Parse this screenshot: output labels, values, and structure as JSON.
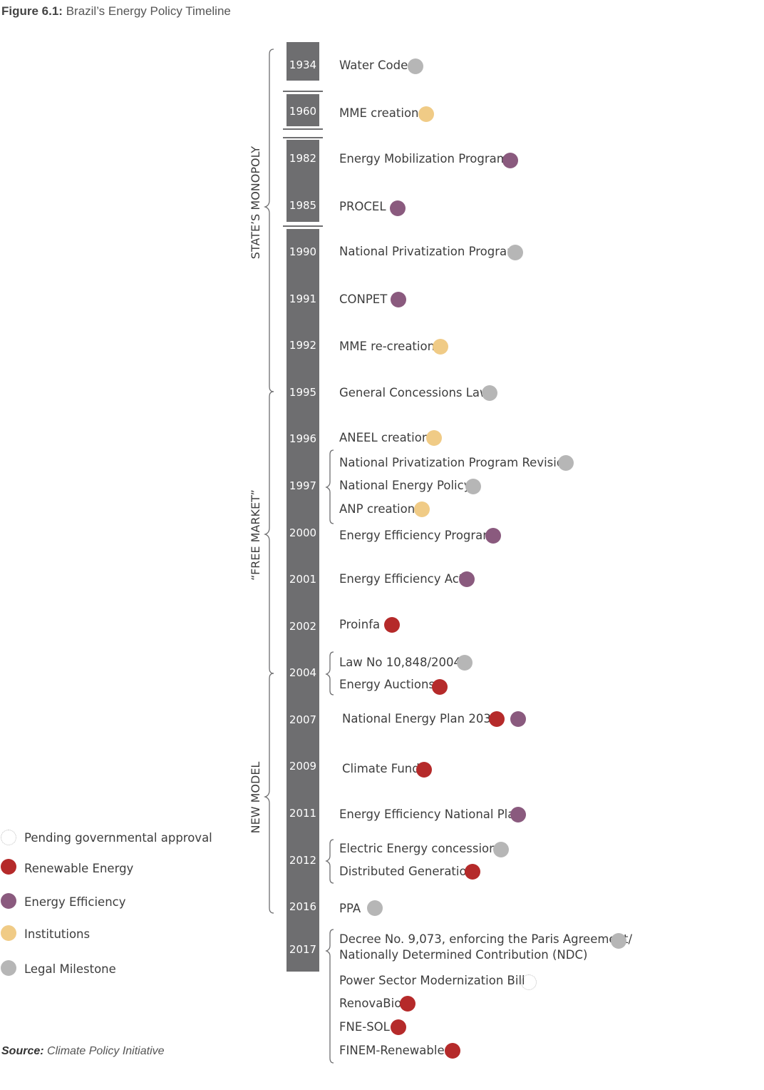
{
  "title": {
    "prefix": "Figure 6.1:",
    "text": "Brazil’s Energy Policy Timeline"
  },
  "source": {
    "prefix": "Source:",
    "text": "Climate Policy Initiative"
  },
  "colors": {
    "renewable": "#b52a2a",
    "efficiency": "#8a5a7e",
    "institutions": "#f0cb86",
    "legal": "#b6b6b6",
    "pending": "#bdbdbd",
    "bar": "#6e6e70"
  },
  "eras": [
    {
      "label": "STATE’S MONOPOLY"
    },
    {
      "label": "“FREE MARKET”"
    },
    {
      "label": "NEW MODEL"
    }
  ],
  "years": [
    "1934",
    "1960",
    "1982",
    "1985",
    "1990",
    "1991",
    "1992",
    "1995",
    "1996",
    "1997",
    "2000",
    "2001",
    "2002",
    "2004",
    "2007",
    "2009",
    "2011",
    "2012",
    "2016",
    "2017"
  ],
  "events": [
    {
      "label": "Water Code",
      "types": [
        "legal"
      ]
    },
    {
      "label": "MME creation",
      "types": [
        "institutions"
      ]
    },
    {
      "label": "Energy Mobilization Program",
      "types": [
        "efficiency"
      ]
    },
    {
      "label": "PROCEL",
      "types": [
        "efficiency"
      ]
    },
    {
      "label": "National Privatization Program",
      "types": [
        "legal"
      ]
    },
    {
      "label": "CONPET",
      "types": [
        "efficiency"
      ]
    },
    {
      "label": "MME re-creation",
      "types": [
        "institutions"
      ]
    },
    {
      "label": "General Concessions Law",
      "types": [
        "legal"
      ]
    },
    {
      "label": "ANEEL creation",
      "types": [
        "institutions"
      ]
    },
    {
      "label": "National Privatization Program Revision",
      "types": [
        "legal"
      ]
    },
    {
      "label": "National Energy Policy",
      "types": [
        "legal"
      ]
    },
    {
      "label": "ANP creation",
      "types": [
        "institutions"
      ]
    },
    {
      "label": "Energy Efficiency Program",
      "types": [
        "efficiency"
      ]
    },
    {
      "label": "Energy Efficiency Act",
      "types": [
        "efficiency"
      ]
    },
    {
      "label": "Proinfa",
      "types": [
        "renewable"
      ]
    },
    {
      "label": "Law No 10,848/2004",
      "types": [
        "legal"
      ]
    },
    {
      "label": "Energy Auctions",
      "types": [
        "renewable"
      ]
    },
    {
      "label": "National Energy Plan 2030",
      "types": [
        "renewable",
        "efficiency"
      ]
    },
    {
      "label": "Climate Fund",
      "types": [
        "renewable"
      ]
    },
    {
      "label": "Energy Efficiency National Plan",
      "types": [
        "efficiency"
      ]
    },
    {
      "label": "Electric Energy concessions",
      "types": [
        "legal"
      ]
    },
    {
      "label": "Distributed Generation",
      "types": [
        "renewable"
      ]
    },
    {
      "label": "PPA",
      "types": [
        "legal"
      ]
    },
    {
      "label": "Decree No. 9,073, enforcing the Paris Agreement/",
      "line2": "Nationally Determined Contribution (NDC)",
      "types": [
        "legal"
      ]
    },
    {
      "label": "Power Sector Modernization Bill",
      "types": [
        "pending"
      ]
    },
    {
      "label": "RenovaBio",
      "types": [
        "renewable"
      ]
    },
    {
      "label": "FNE-SOL",
      "types": [
        "renewable"
      ]
    },
    {
      "label": "FINEM-Renewables",
      "types": [
        "renewable"
      ]
    }
  ],
  "legend": [
    {
      "label": "Pending governmental approval",
      "type": "pending"
    },
    {
      "label": "Renewable Energy",
      "type": "renewable"
    },
    {
      "label": "Energy Efficiency",
      "type": "efficiency"
    },
    {
      "label": "Institutions",
      "type": "institutions"
    },
    {
      "label": "Legal Milestone",
      "type": "legal"
    }
  ]
}
